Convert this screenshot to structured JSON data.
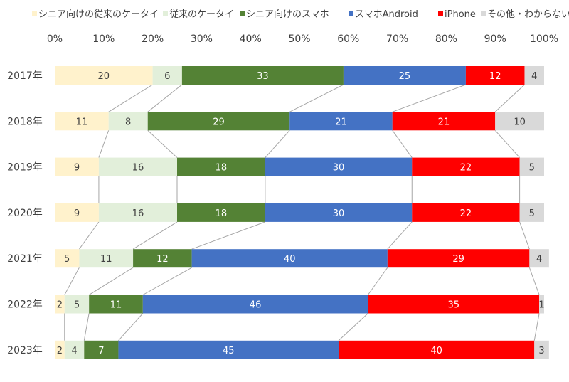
{
  "chart_data": {
    "type": "bar",
    "orientation": "horizontal",
    "stacked": "percent",
    "title": "",
    "xlabel": "",
    "ylabel": "",
    "xlim": [
      0,
      100
    ],
    "x_ticks": [
      "0%",
      "10%",
      "20%",
      "30%",
      "40%",
      "50%",
      "60%",
      "70%",
      "80%",
      "90%",
      "100%"
    ],
    "grid": false,
    "legend_position": "top",
    "series_lines": true,
    "categories": [
      "2017年",
      "2018年",
      "2019年",
      "2020年",
      "2021年",
      "2022年",
      "2023年"
    ],
    "series": [
      {
        "name": "シニア向けの従来のケータイ",
        "color": "#FFF2CC",
        "label_color": "#404040",
        "values": [
          20,
          11,
          9,
          9,
          5,
          2,
          2
        ]
      },
      {
        "name": "従来のケータイ",
        "color": "#E2EFDA",
        "label_color": "#404040",
        "values": [
          6,
          8,
          16,
          16,
          11,
          5,
          4
        ]
      },
      {
        "name": "シニア向けのスマホ",
        "color": "#548235",
        "label_color": "#ffffff",
        "values": [
          33,
          29,
          18,
          18,
          12,
          11,
          7
        ]
      },
      {
        "name": "スマホAndroid",
        "color": "#4472C4",
        "label_color": "#ffffff",
        "values": [
          25,
          21,
          30,
          30,
          40,
          46,
          45
        ]
      },
      {
        "name": "iPhone",
        "color": "#FF0000",
        "label_color": "#ffffff",
        "values": [
          12,
          21,
          22,
          22,
          29,
          35,
          40
        ]
      },
      {
        "name": "その他・わからない",
        "color": "#D9D9D9",
        "label_color": "#404040",
        "values": [
          4,
          10,
          5,
          5,
          4,
          1,
          3
        ]
      }
    ]
  }
}
